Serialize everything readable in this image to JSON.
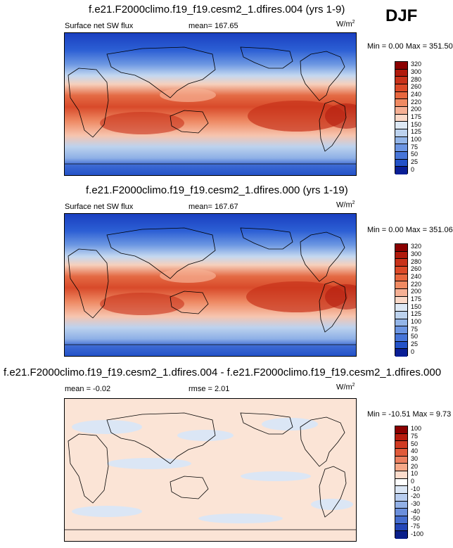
{
  "season": "DJF",
  "panels": [
    {
      "title": "f.e21.F2000climo.f19_f19.cesm2_1.dfires.004 (yrs 1-9)",
      "left_label": "Surface net SW flux",
      "stat_label": "mean=",
      "stat_value": "167.65",
      "units": "W/m",
      "units_sup": "2",
      "minmax": "Min =   0.00 Max = 351.50",
      "scheme": "abs",
      "colorbar_levels": [
        "320",
        "300",
        "280",
        "260",
        "240",
        "220",
        "200",
        "175",
        "150",
        "125",
        "100",
        "75",
        "50",
        "25",
        "0"
      ]
    },
    {
      "title": "f.e21.F2000climo.f19_f19.cesm2_1.dfires.000 (yrs 1-19)",
      "left_label": "Surface net SW flux",
      "stat_label": "mean=",
      "stat_value": "167.67",
      "units": "W/m",
      "units_sup": "2",
      "minmax": "Min =   0.00 Max = 351.06",
      "scheme": "abs",
      "colorbar_levels": [
        "320",
        "300",
        "280",
        "260",
        "240",
        "220",
        "200",
        "175",
        "150",
        "125",
        "100",
        "75",
        "50",
        "25",
        "0"
      ]
    },
    {
      "title": "f.e21.F2000climo.f19_f19.cesm2_1.dfires.004 - f.e21.F2000climo.f19_f19.cesm2_1.dfires.000",
      "left_label": "mean =  -0.02",
      "stat_label": "rmse =",
      "stat_value": "2.01",
      "units": "W/m",
      "units_sup": "2",
      "minmax": "Min = -10.51 Max =   9.73",
      "scheme": "diff",
      "colorbar_levels": [
        "100",
        "75",
        "50",
        "40",
        "30",
        "20",
        "10",
        "0",
        "-10",
        "-20",
        "-30",
        "-40",
        "-50",
        "-75",
        "-100"
      ]
    }
  ],
  "colors": {
    "abs": [
      "#8b0000",
      "#b01a0c",
      "#c8321a",
      "#dc4a28",
      "#e8673e",
      "#f08a62",
      "#f6b094",
      "#fbd9c8",
      "#dde8f4",
      "#bcd2ee",
      "#93b5e8",
      "#6c95e2",
      "#4775d8",
      "#2352c8",
      "#0a1f96"
    ],
    "diff": [
      "#8b0000",
      "#b81c0e",
      "#d03a22",
      "#e05a3a",
      "#ec8060",
      "#f5a888",
      "#fcdccc",
      "#ffffff",
      "#dbe6f5",
      "#b8cdef",
      "#92b0e6",
      "#6b8fdc",
      "#456dcf",
      "#2346b8",
      "#0a1f8a"
    ]
  }
}
